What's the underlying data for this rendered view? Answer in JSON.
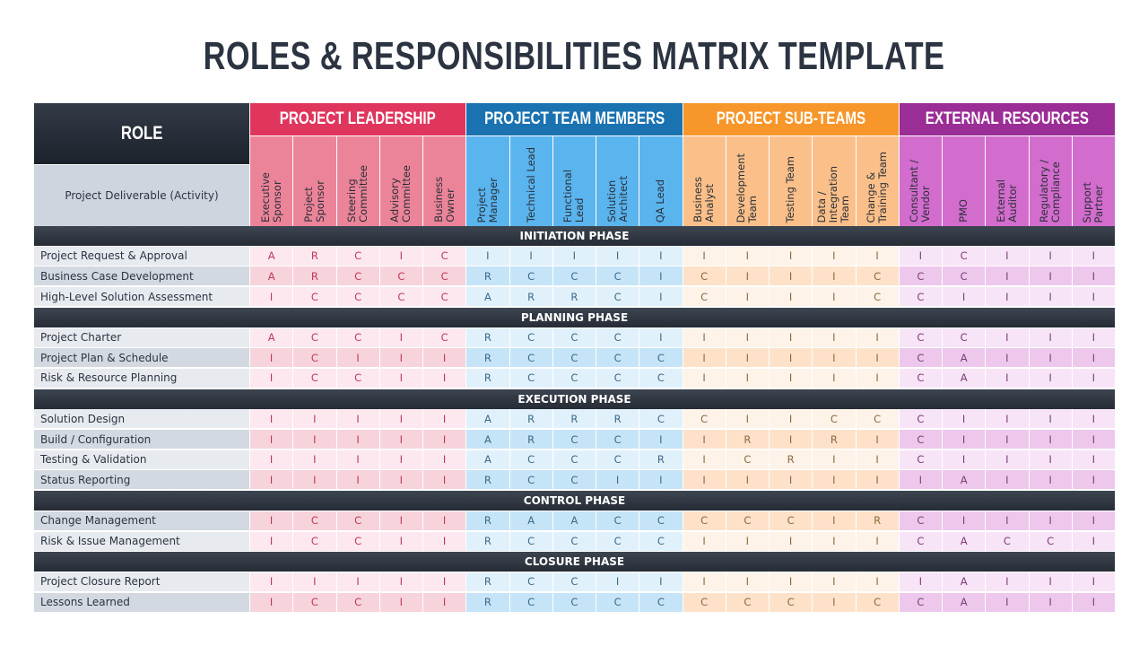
{
  "title": "ROLES & RESPONSIBILITIES MATRIX TEMPLATE",
  "header": {
    "role": "ROLE",
    "activity": "Project Deliverable (Activity)"
  },
  "groups": [
    {
      "name": "PROJECT LEADERSHIP",
      "colors": {
        "header": "#e0365e",
        "sub": "#ec8499",
        "cell": "#fce8ee",
        "cellAlt": "#f7d3dc",
        "text": "#c0395a"
      },
      "roles": [
        "Executive\nSponsor",
        "Project\nSponsor",
        "Steering\nCommittee",
        "Advisory\nCommittee",
        "Business\nOwner"
      ]
    },
    {
      "name": "PROJECT TEAM MEMBERS",
      "colors": {
        "header": "#1a72b0",
        "sub": "#5ab4ee",
        "cell": "#e1f1fb",
        "cellAlt": "#c5e4f8",
        "text": "#3d6a8a"
      },
      "roles": [
        "Project\nManager",
        "Technical Lead",
        "Functional\nLead",
        "Solution\nArchitect",
        "QA Lead"
      ]
    },
    {
      "name": "PROJECT SUB-TEAMS",
      "colors": {
        "header": "#f7962a",
        "sub": "#fbc08a",
        "cell": "#fef3e8",
        "cellAlt": "#fde2c9",
        "text": "#8a6a40"
      },
      "roles": [
        "Business\nAnalyst",
        "Development\nTeam",
        "Testing Team",
        "Data /\nIntegration\nTeam",
        "Change &\nTraining Team"
      ]
    },
    {
      "name": "EXTERNAL RESOURCES",
      "colors": {
        "header": "#9b2d96",
        "sub": "#d26ccd",
        "cell": "#f8e4f7",
        "cellAlt": "#edc8ec",
        "text": "#7a3e78"
      },
      "roles": [
        "Consultant /\nVendor",
        "PMO",
        "External\nAuditor",
        "Regulatory /\nCompliance",
        "Support\nPartner"
      ]
    }
  ],
  "phases": [
    {
      "name": "INITIATION PHASE",
      "rows": [
        {
          "activity": "Project Request & Approval",
          "values": [
            "A",
            "R",
            "C",
            "I",
            "C",
            "I",
            "I",
            "I",
            "I",
            "I",
            "I",
            "I",
            "I",
            "I",
            "I",
            "I",
            "C",
            "I",
            "I",
            "I"
          ]
        },
        {
          "activity": "Business Case Development",
          "values": [
            "A",
            "R",
            "C",
            "C",
            "C",
            "R",
            "C",
            "C",
            "C",
            "I",
            "C",
            "I",
            "I",
            "I",
            "C",
            "C",
            "C",
            "I",
            "I",
            "I"
          ]
        },
        {
          "activity": "High-Level Solution Assessment",
          "values": [
            "I",
            "C",
            "C",
            "C",
            "C",
            "A",
            "R",
            "R",
            "C",
            "I",
            "C",
            "I",
            "I",
            "I",
            "C",
            "C",
            "I",
            "I",
            "I",
            "I"
          ]
        }
      ]
    },
    {
      "name": "PLANNING PHASE",
      "rows": [
        {
          "activity": "Project Charter",
          "values": [
            "A",
            "C",
            "C",
            "I",
            "C",
            "R",
            "C",
            "C",
            "C",
            "I",
            "I",
            "I",
            "I",
            "I",
            "I",
            "C",
            "C",
            "I",
            "I",
            "I"
          ]
        },
        {
          "activity": "Project Plan & Schedule",
          "values": [
            "I",
            "C",
            "I",
            "I",
            "I",
            "R",
            "C",
            "C",
            "C",
            "C",
            "I",
            "I",
            "I",
            "I",
            "I",
            "C",
            "A",
            "I",
            "I",
            "I"
          ]
        },
        {
          "activity": "Risk & Resource Planning",
          "values": [
            "I",
            "C",
            "C",
            "I",
            "I",
            "R",
            "C",
            "C",
            "C",
            "C",
            "I",
            "I",
            "I",
            "I",
            "I",
            "C",
            "A",
            "I",
            "I",
            "I"
          ]
        }
      ]
    },
    {
      "name": "EXECUTION PHASE",
      "rows": [
        {
          "activity": "Solution Design",
          "values": [
            "I",
            "I",
            "I",
            "I",
            "I",
            "A",
            "R",
            "R",
            "R",
            "C",
            "C",
            "I",
            "I",
            "C",
            "C",
            "C",
            "I",
            "I",
            "I",
            "I"
          ]
        },
        {
          "activity": "Build / Configuration",
          "values": [
            "I",
            "I",
            "I",
            "I",
            "I",
            "A",
            "R",
            "C",
            "C",
            "I",
            "I",
            "R",
            "I",
            "R",
            "I",
            "C",
            "I",
            "I",
            "I",
            "I"
          ]
        },
        {
          "activity": "Testing & Validation",
          "values": [
            "I",
            "I",
            "I",
            "I",
            "I",
            "A",
            "C",
            "C",
            "C",
            "R",
            "I",
            "C",
            "R",
            "I",
            "I",
            "C",
            "I",
            "I",
            "I",
            "I"
          ]
        },
        {
          "activity": "Status Reporting",
          "values": [
            "I",
            "I",
            "I",
            "I",
            "I",
            "R",
            "C",
            "C",
            "I",
            "I",
            "I",
            "I",
            "I",
            "I",
            "I",
            "I",
            "A",
            "I",
            "I",
            "I"
          ]
        }
      ]
    },
    {
      "name": "CONTROL PHASE",
      "rows": [
        {
          "activity": "Change Management",
          "values": [
            "I",
            "C",
            "C",
            "I",
            "I",
            "R",
            "A",
            "A",
            "C",
            "C",
            "C",
            "C",
            "C",
            "I",
            "R",
            "C",
            "I",
            "I",
            "I",
            "I"
          ]
        },
        {
          "activity": "Risk & Issue Management",
          "values": [
            "I",
            "C",
            "C",
            "I",
            "I",
            "R",
            "C",
            "C",
            "C",
            "C",
            "I",
            "I",
            "I",
            "I",
            "I",
            "C",
            "A",
            "C",
            "C",
            "I"
          ]
        }
      ]
    },
    {
      "name": "CLOSURE PHASE",
      "rows": [
        {
          "activity": "Project Closure Report",
          "values": [
            "I",
            "I",
            "I",
            "I",
            "I",
            "R",
            "C",
            "C",
            "I",
            "I",
            "I",
            "I",
            "I",
            "I",
            "I",
            "I",
            "A",
            "I",
            "I",
            "I"
          ]
        },
        {
          "activity": "Lessons Learned",
          "values": [
            "I",
            "C",
            "C",
            "I",
            "I",
            "R",
            "C",
            "C",
            "C",
            "C",
            "C",
            "C",
            "C",
            "I",
            "C",
            "C",
            "A",
            "I",
            "I",
            "I"
          ]
        }
      ]
    }
  ]
}
